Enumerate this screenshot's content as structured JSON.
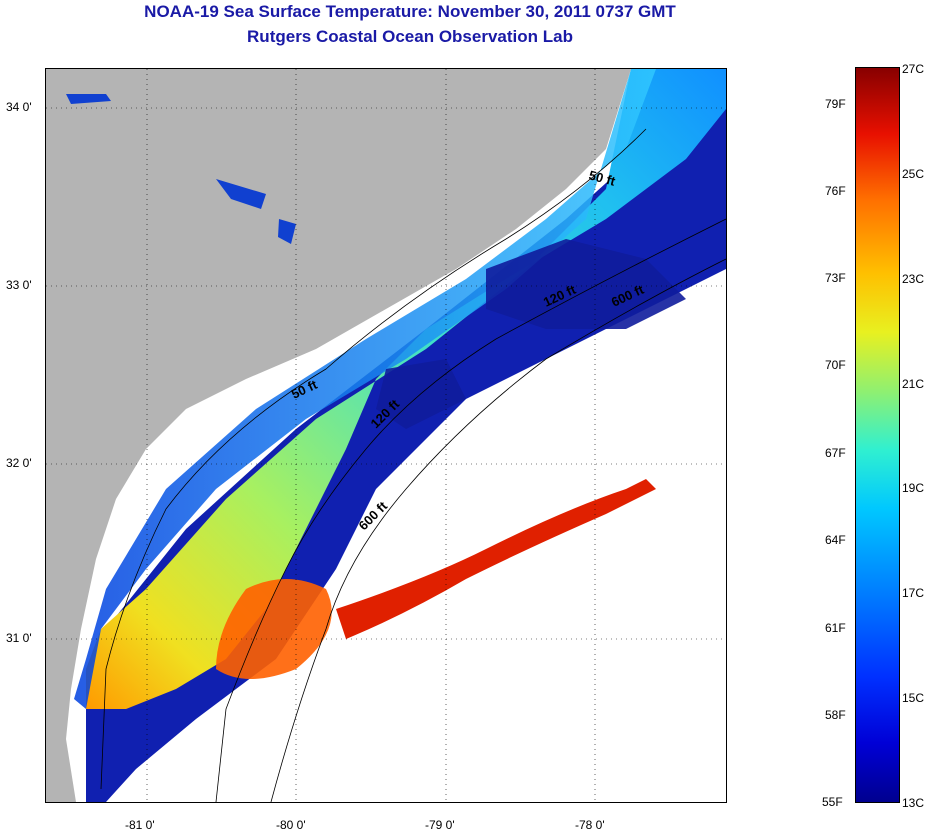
{
  "title_line1": "NOAA-19 Sea Surface Temperature:  November 30, 2011 0737 GMT",
  "title_line2": "Rutgers Coastal Ocean Observation Lab",
  "map": {
    "x_ticks": [
      "-81 0'",
      "-80 0'",
      "-79 0'",
      "-78 0'"
    ],
    "y_ticks": [
      "34 0'",
      "33 0'",
      "32 0'",
      "31 0'"
    ],
    "contour_labels": [
      "50 ft",
      "50 ft",
      "120 ft",
      "120 ft",
      "600 ft",
      "600 ft"
    ],
    "land_color": "#b4b4b4"
  },
  "colorbar": {
    "fahrenheit_labels": [
      "79F",
      "76F",
      "73F",
      "70F",
      "67F",
      "64F",
      "61F",
      "58F",
      "55F"
    ],
    "celsius_labels": [
      "27C",
      "25C",
      "23C",
      "21C",
      "19C",
      "17C",
      "15C",
      "13C"
    ]
  }
}
